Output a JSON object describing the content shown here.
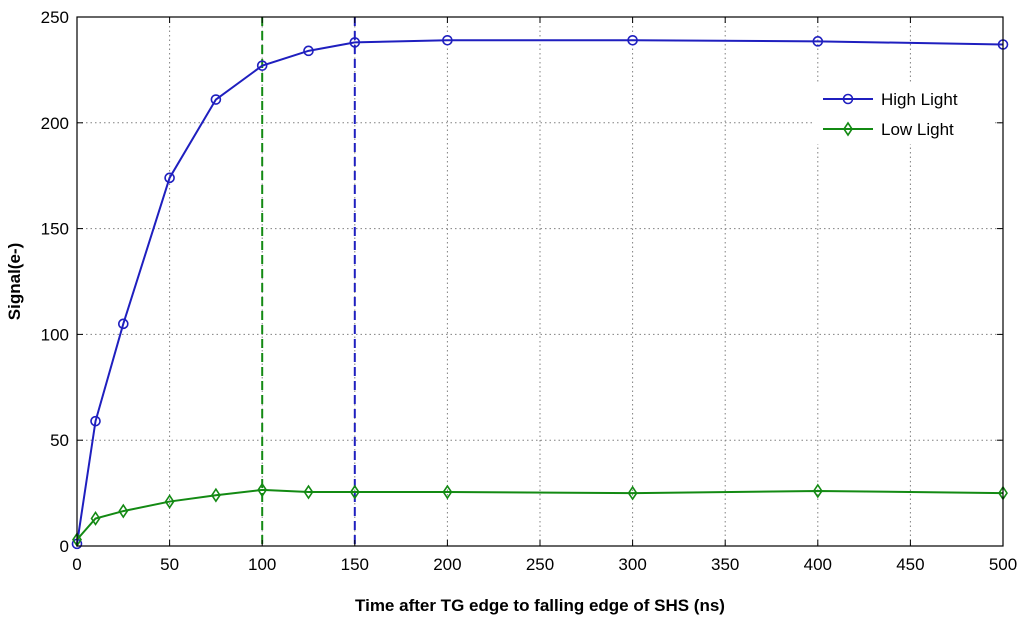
{
  "chart_data": {
    "type": "line",
    "title": "",
    "xlabel": "Time after TG edge to falling edge of SHS (ns)",
    "ylabel": "Signal(e-)",
    "xlim": [
      0,
      500
    ],
    "ylim": [
      0,
      250
    ],
    "xticks": [
      0,
      50,
      100,
      150,
      200,
      250,
      300,
      350,
      400,
      450,
      500
    ],
    "yticks": [
      0,
      50,
      100,
      150,
      200,
      250
    ],
    "grid": true,
    "legend_position": "top-right",
    "series": [
      {
        "name": "High Light",
        "color": "#1f1fbf",
        "marker": "circle",
        "x": [
          0,
          10,
          25,
          50,
          75,
          100,
          125,
          150,
          200,
          300,
          400,
          500
        ],
        "y": [
          1,
          59,
          105,
          174,
          211,
          227,
          234,
          238,
          239,
          239,
          238.5,
          237
        ]
      },
      {
        "name": "Low Light",
        "color": "#138a13",
        "marker": "diamond",
        "x": [
          0,
          10,
          25,
          50,
          75,
          100,
          125,
          150,
          200,
          300,
          400,
          500
        ],
        "y": [
          3,
          13,
          16.5,
          21,
          24,
          26.5,
          25.5,
          25.5,
          25.5,
          25,
          26,
          25
        ]
      }
    ],
    "reference_lines": [
      {
        "x": 100,
        "color": "#138a13",
        "style": "dashed"
      },
      {
        "x": 150,
        "color": "#1f1fbf",
        "style": "dashed"
      }
    ]
  }
}
